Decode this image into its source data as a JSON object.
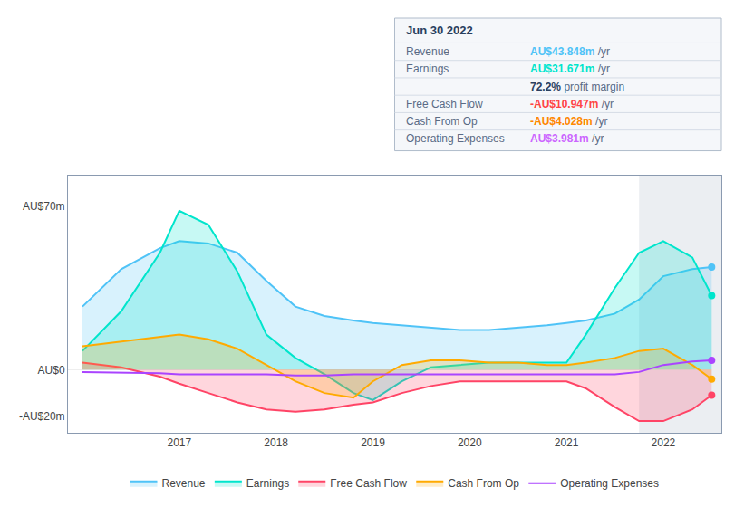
{
  "chart_data": {
    "type": "line",
    "x": [
      2016.0,
      2016.4,
      2016.8,
      2017.0,
      2017.3,
      2017.6,
      2017.9,
      2018.2,
      2018.5,
      2018.8,
      2019.0,
      2019.3,
      2019.6,
      2019.9,
      2020.2,
      2020.5,
      2020.8,
      2021.0,
      2021.2,
      2021.5,
      2021.75,
      2022.0,
      2022.3,
      2022.5
    ],
    "xlim": [
      2015.85,
      2022.6
    ],
    "xticks": [
      2017,
      2018,
      2019,
      2020,
      2021,
      2022
    ],
    "ylim": [
      -27,
      83
    ],
    "yticks": [
      {
        "value": -20,
        "label": "-AU$20m"
      },
      {
        "value": 0,
        "label": "AU$0"
      },
      {
        "value": 70,
        "label": "AU$70m"
      }
    ],
    "grid": true,
    "legend": "bottom",
    "shade": [
      2021.75,
      2022.6
    ],
    "series": [
      {
        "name": "Revenue",
        "color": "#4fc3f7",
        "type": "area",
        "values": [
          27,
          43,
          52,
          55,
          54,
          50,
          38,
          27,
          23,
          21,
          20,
          19,
          18,
          17,
          17,
          18,
          19,
          20,
          21,
          24,
          30,
          40,
          43,
          43.848
        ]
      },
      {
        "name": "Earnings",
        "color": "#00e5cc",
        "type": "area",
        "values": [
          8,
          25,
          50,
          68,
          62,
          42,
          15,
          5,
          -2,
          -10,
          -13,
          -5,
          1,
          2,
          3,
          3,
          3,
          3,
          15,
          35,
          50,
          55,
          48,
          31.671
        ]
      },
      {
        "name": "Free Cash Flow",
        "color": "#ff4466",
        "type": "area",
        "values": [
          3,
          1,
          -3,
          -6,
          -10,
          -14,
          -17,
          -18,
          -17,
          -15,
          -14,
          -10,
          -7,
          -5,
          -5,
          -5,
          -5,
          -5,
          -8,
          -16,
          -22,
          -22,
          -17,
          -10.947
        ]
      },
      {
        "name": "Cash From Op",
        "color": "#ffaa00",
        "type": "area",
        "values": [
          10,
          12,
          14,
          15,
          13,
          9,
          2,
          -5,
          -10,
          -12,
          -5,
          2,
          4,
          4,
          3,
          3,
          2,
          2,
          3,
          5,
          8,
          9,
          2,
          -4.028
        ]
      },
      {
        "name": "Operating Expenses",
        "color": "#aa44ff",
        "type": "line",
        "values": [
          -1,
          -1.2,
          -1.5,
          -2,
          -2,
          -2,
          -2,
          -2.5,
          -2.5,
          -2,
          -2,
          -2,
          -2,
          -2,
          -2,
          -2,
          -2,
          -2,
          -2,
          -2,
          -1,
          2,
          3.5,
          3.981
        ]
      }
    ],
    "info_box": {
      "title": "Jun 30 2022",
      "rows": [
        {
          "label": "Revenue",
          "value": "AU$43.848m",
          "color": "#4fc3f7",
          "suffix": "/yr"
        },
        {
          "label": "Earnings",
          "value": "AU$31.671m",
          "color": "#00e5cc",
          "suffix": "/yr"
        },
        {
          "value": "72.2%",
          "suffix": "profit margin"
        },
        {
          "label": "Free Cash Flow",
          "value": "-AU$10.947m",
          "color": "#ff4444",
          "suffix": "/yr"
        },
        {
          "label": "Cash From Op",
          "value": "-AU$4.028m",
          "color": "#ff8800",
          "suffix": "/yr"
        },
        {
          "label": "Operating Expenses",
          "value": "AU$3.981m",
          "color": "#cc66ff",
          "suffix": "/yr"
        }
      ]
    }
  }
}
